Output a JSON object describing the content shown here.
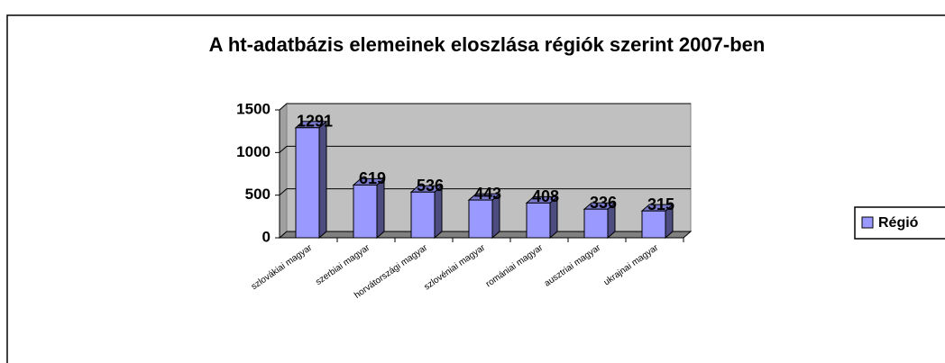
{
  "chart_data": {
    "type": "bar3d",
    "title": "A ht-adatbázis elemeinek eloszlása régiók szerint 2007-ben",
    "categories": [
      "szlovákiai magyar",
      "szerbiai magyar",
      "horvátországi magyar",
      "szlovéniai magyar",
      "romániai magyar",
      "ausztriai magyar",
      "ukrajnai magyar"
    ],
    "series": [
      {
        "name": "Régió",
        "color": "#9999ff",
        "values": [
          1291,
          619,
          536,
          443,
          408,
          336,
          315
        ]
      }
    ],
    "ylim": [
      0,
      1500
    ],
    "yticks": [
      0,
      500,
      1000,
      1500
    ],
    "grid": true,
    "legend": "right"
  }
}
